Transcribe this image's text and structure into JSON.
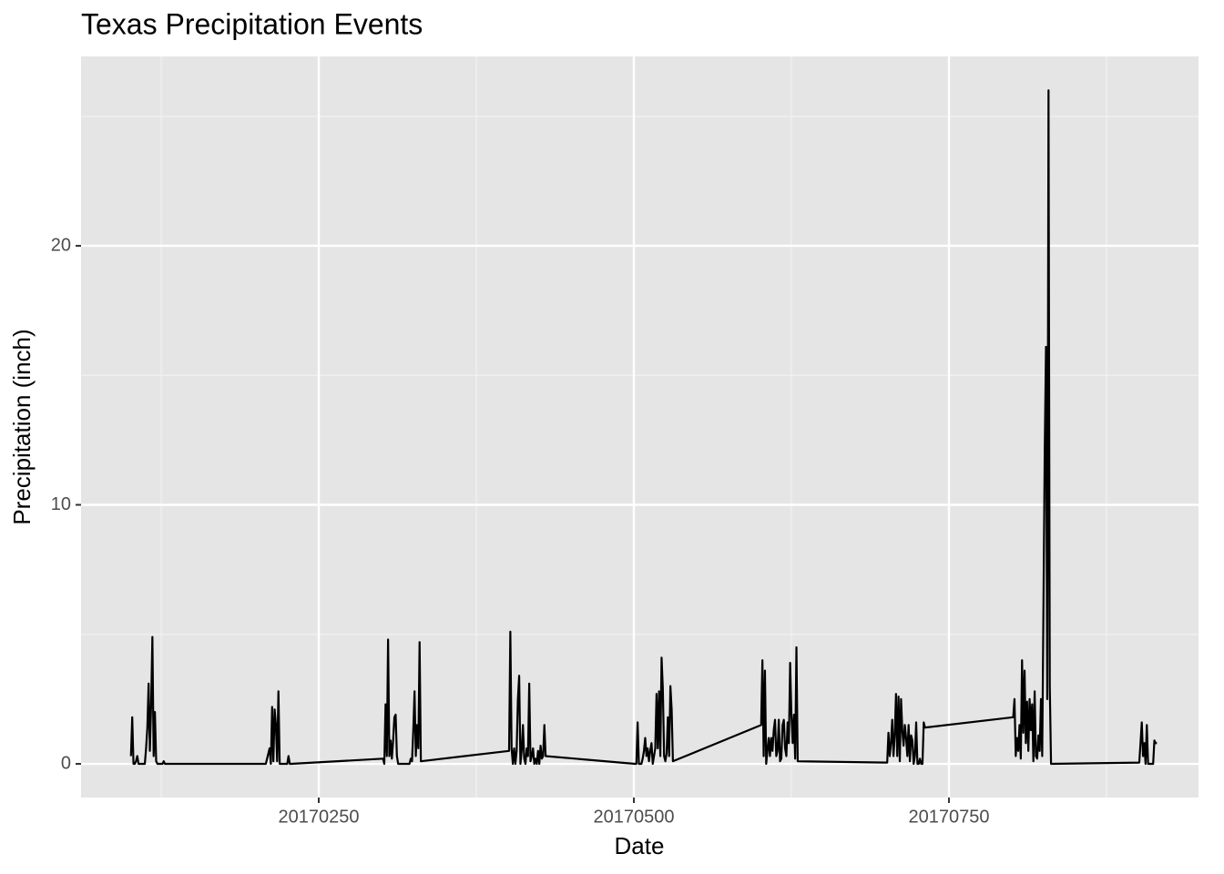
{
  "chart_data": {
    "type": "line",
    "title": "Texas Precipitation Events",
    "x_label": "Date",
    "y_label": "Precipitation (inch)",
    "xlim": [
      20170061.4,
      20170948
    ],
    "ylim": [
      -1.3,
      27.31
    ],
    "xticks": [
      20170250,
      20170500,
      20170750
    ],
    "yticks": [
      0,
      10,
      20
    ],
    "grid": true,
    "series": [
      {
        "name": "Precipitation",
        "color": "#000000",
        "x": [
          20170101,
          20170102,
          20170103,
          20170104,
          20170105,
          20170106,
          20170107,
          20170108,
          20170109,
          20170110,
          20170111,
          20170112,
          20170113,
          20170114,
          20170115,
          20170116,
          20170117,
          20170118,
          20170119,
          20170120,
          20170121,
          20170122,
          20170123,
          20170124,
          20170125,
          20170126,
          20170127,
          20170128,
          20170129,
          20170130,
          20170131,
          20170201,
          20170202,
          20170203,
          20170204,
          20170205,
          20170206,
          20170207,
          20170208,
          20170209,
          20170210,
          20170211,
          20170212,
          20170213,
          20170214,
          20170215,
          20170216,
          20170217,
          20170218,
          20170219,
          20170220,
          20170221,
          20170222,
          20170223,
          20170224,
          20170225,
          20170226,
          20170227,
          20170228,
          20170301,
          20170302,
          20170303,
          20170304,
          20170305,
          20170306,
          20170307,
          20170308,
          20170309,
          20170310,
          20170311,
          20170312,
          20170313,
          20170314,
          20170315,
          20170316,
          20170317,
          20170318,
          20170319,
          20170320,
          20170321,
          20170322,
          20170323,
          20170324,
          20170325,
          20170326,
          20170327,
          20170328,
          20170329,
          20170330,
          20170331,
          20170401,
          20170402,
          20170403,
          20170404,
          20170405,
          20170406,
          20170407,
          20170408,
          20170409,
          20170410,
          20170411,
          20170412,
          20170413,
          20170414,
          20170415,
          20170416,
          20170417,
          20170418,
          20170419,
          20170420,
          20170421,
          20170422,
          20170423,
          20170424,
          20170425,
          20170426,
          20170427,
          20170428,
          20170429,
          20170430,
          20170501,
          20170502,
          20170503,
          20170504,
          20170505,
          20170506,
          20170507,
          20170508,
          20170509,
          20170510,
          20170511,
          20170512,
          20170513,
          20170514,
          20170515,
          20170516,
          20170517,
          20170518,
          20170519,
          20170520,
          20170521,
          20170522,
          20170523,
          20170524,
          20170525,
          20170526,
          20170527,
          20170528,
          20170529,
          20170530,
          20170531,
          20170601,
          20170602,
          20170603,
          20170604,
          20170605,
          20170606,
          20170607,
          20170608,
          20170609,
          20170610,
          20170611,
          20170612,
          20170613,
          20170614,
          20170615,
          20170616,
          20170617,
          20170618,
          20170619,
          20170620,
          20170621,
          20170622,
          20170623,
          20170624,
          20170625,
          20170626,
          20170627,
          20170628,
          20170629,
          20170630,
          20170701,
          20170702,
          20170703,
          20170704,
          20170705,
          20170706,
          20170707,
          20170708,
          20170709,
          20170710,
          20170711,
          20170712,
          20170713,
          20170714,
          20170715,
          20170716,
          20170717,
          20170718,
          20170719,
          20170720,
          20170721,
          20170722,
          20170723,
          20170724,
          20170725,
          20170726,
          20170727,
          20170728,
          20170729,
          20170730,
          20170731,
          20170801,
          20170802,
          20170803,
          20170804,
          20170805,
          20170806,
          20170807,
          20170808,
          20170809,
          20170810,
          20170811,
          20170812,
          20170813,
          20170814,
          20170815,
          20170816,
          20170817,
          20170818,
          20170819,
          20170820,
          20170821,
          20170822,
          20170823,
          20170824,
          20170825,
          20170826,
          20170827,
          20170828,
          20170829,
          20170830,
          20170831,
          20170901,
          20170902,
          20170903,
          20170904,
          20170905,
          20170906,
          20170907,
          20170908,
          20170909,
          20170910,
          20170911,
          20170912,
          20170913,
          20170914,
          20170915
        ],
        "values": [
          0.3,
          1.8,
          0,
          0,
          0.1,
          0.3,
          0,
          0,
          0,
          0,
          0,
          0,
          0.6,
          1.4,
          3.1,
          0.5,
          2.3,
          4.9,
          0.3,
          2.0,
          0.1,
          0,
          0,
          0,
          0,
          0,
          0.1,
          0,
          0,
          0,
          0,
          0,
          0,
          0,
          0,
          0,
          0,
          0,
          0,
          0.2,
          0.4,
          0.6,
          0,
          2.2,
          0.1,
          2.1,
          1.5,
          0.1,
          2.8,
          0,
          0,
          0,
          0,
          0,
          0,
          0,
          0.3,
          0,
          0,
          0.2,
          0,
          2.3,
          0.3,
          4.8,
          0.3,
          0.9,
          0.2,
          0.9,
          1.8,
          1.9,
          0.3,
          0,
          0,
          0,
          0,
          0,
          0,
          0,
          0,
          0,
          0,
          0.2,
          0.1,
          1.3,
          2.8,
          0.3,
          1.5,
          0.6,
          4.7,
          0.1,
          0.5,
          5.1,
          0.6,
          0,
          0.6,
          0,
          0.5,
          2.5,
          3.4,
          0,
          0.5,
          1.5,
          0.2,
          0,
          0.6,
          0.3,
          3.1,
          0.1,
          0.3,
          0.6,
          0,
          0.2,
          0,
          0.5,
          0,
          0.7,
          0.2,
          0.3,
          1.5,
          0.3,
          0,
          0,
          1.6,
          0,
          0,
          0,
          0.2,
          0.5,
          1.0,
          0.3,
          0.6,
          0.1,
          0.5,
          0.8,
          0,
          0.3,
          0.6,
          2.7,
          0.6,
          2.8,
          0.3,
          4.1,
          2.9,
          0.3,
          0.1,
          0.4,
          1.8,
          0.3,
          3.0,
          2.1,
          0.1,
          1.5,
          4.0,
          0.3,
          3.6,
          0,
          0.5,
          1.0,
          0.3,
          1.0,
          0.5,
          1.3,
          1.7,
          0.3,
          0.5,
          1.7,
          0.1,
          0.2,
          1.5,
          1.7,
          0.6,
          0.3,
          1.6,
          0.8,
          3.9,
          1.9,
          0.8,
          1.9,
          0.2,
          4.5,
          0.1,
          0.05,
          1.2,
          0.3,
          0.8,
          1.7,
          0.3,
          1.1,
          2.7,
          0.3,
          2.6,
          0.1,
          2.5,
          1.3,
          0.7,
          1.5,
          1.0,
          0.3,
          1.5,
          0.1,
          1.1,
          0.9,
          0,
          0.3,
          1.6,
          0,
          0,
          0.2,
          0,
          0,
          1.6,
          1.4,
          1.8,
          2.5,
          0.3,
          1.0,
          0.5,
          1.5,
          0.2,
          4.0,
          1.2,
          3.6,
          0.8,
          2.4,
          0.5,
          2.5,
          1.3,
          2.3,
          0.1,
          2.8,
          0.3,
          0.2,
          1.1,
          0.5,
          2.5,
          0.3,
          6.2,
          12.1,
          16.1,
          2.5,
          26.0,
          3.0,
          0,
          0.05,
          0.8,
          1.6,
          0.3,
          0.8,
          0,
          1.5,
          0,
          0,
          0,
          0,
          0,
          0.9,
          0.8,
          0.8
        ]
      }
    ]
  }
}
